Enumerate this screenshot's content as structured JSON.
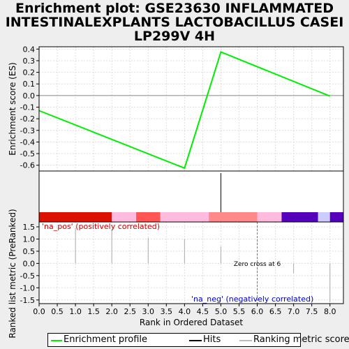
{
  "title_lines": [
    "Enrichment plot: GSE23630 INFLAMMATED",
    "INTESTINALEXPLANTS LACTOBACILLUS CASEI",
    "LP299V 4H"
  ],
  "colors": {
    "enrichment_line": "#00ee00",
    "hits": "#000000",
    "ranking_bars": "#aaaaaa",
    "pos_label": "#cc0000",
    "neg_label": "#0000cc",
    "zero_cross_line": "#777777"
  },
  "chart_data": [
    {
      "type": "line",
      "name": "enrichment-profile",
      "ylabel": "Enrichment score (ES)",
      "ylim": [
        -0.65,
        0.42
      ],
      "y_ticks": [
        "0.4",
        "0.3",
        "0.2",
        "0.1",
        "0.0",
        "-0.1",
        "-0.2",
        "-0.3",
        "-0.4",
        "-0.5",
        "-0.6"
      ],
      "y_tick_values": [
        0.4,
        0.3,
        0.2,
        0.1,
        0.0,
        -0.1,
        -0.2,
        -0.3,
        -0.4,
        -0.5,
        -0.6
      ],
      "grid": true,
      "x": [
        0,
        4,
        5,
        8
      ],
      "y": [
        -0.13,
        -0.625,
        0.375,
        -0.005
      ]
    },
    {
      "type": "bar",
      "name": "hits",
      "hit_positions": [
        5
      ],
      "heatmap_colors": [
        "#dd1100",
        "#dd1100",
        "#ffbbdd",
        "#ff5555",
        "#ffbbdd",
        "#ff8888",
        "#ffbbdd",
        "#ffbbdd",
        "#5500bb",
        "#ccccff",
        "#5500bb",
        "#5500bb",
        "#6655ee",
        "#5500bb"
      ],
      "heatmap_breaks": [
        0,
        1.33,
        2.0,
        2.67,
        3.33,
        4.67,
        6.0,
        6.33,
        6.67,
        7.67,
        8.0,
        8.37
      ]
    },
    {
      "type": "bar",
      "name": "ranked-list-metric",
      "ylabel": "Ranked list metric (PreRanked)",
      "xlabel": "Rank in Ordered Dataset",
      "ylim": [
        -1.65,
        1.7
      ],
      "y_ticks": [
        "1.5",
        "1.0",
        "0.5",
        "0.0",
        "-0.5",
        "-1.0",
        "-1.5"
      ],
      "y_tick_values": [
        1.5,
        1.0,
        0.5,
        0.0,
        -0.5,
        -1.0,
        -1.5
      ],
      "x_ticks": [
        "0.0",
        "0.5",
        "1.0",
        "1.5",
        "2.0",
        "2.5",
        "3.0",
        "3.5",
        "4.0",
        "4.5",
        "5.0",
        "5.5",
        "6.0",
        "6.5",
        "7.0",
        "7.5",
        "8.0"
      ],
      "x_tick_values": [
        0,
        0.5,
        1,
        1.5,
        2,
        2.5,
        3,
        3.5,
        4,
        4.5,
        5,
        5.5,
        6,
        6.5,
        7,
        7.5,
        8
      ],
      "xlim": [
        0,
        8.37
      ],
      "x": [
        1,
        2,
        3,
        4,
        5,
        7,
        8
      ],
      "values": [
        1.45,
        1.4,
        1.05,
        1.0,
        0.7,
        -0.4,
        -1.6
      ],
      "zero_cross_x": 6,
      "annotations": {
        "pos": "'na_pos' (positively correlated)",
        "neg": "'na_neg' (negatively correlated)",
        "zero_cross": "Zero cross at 6"
      }
    }
  ],
  "legend": {
    "enrichment": "Enrichment profile",
    "hits": "Hits",
    "ranking": "Ranking metric scores"
  }
}
